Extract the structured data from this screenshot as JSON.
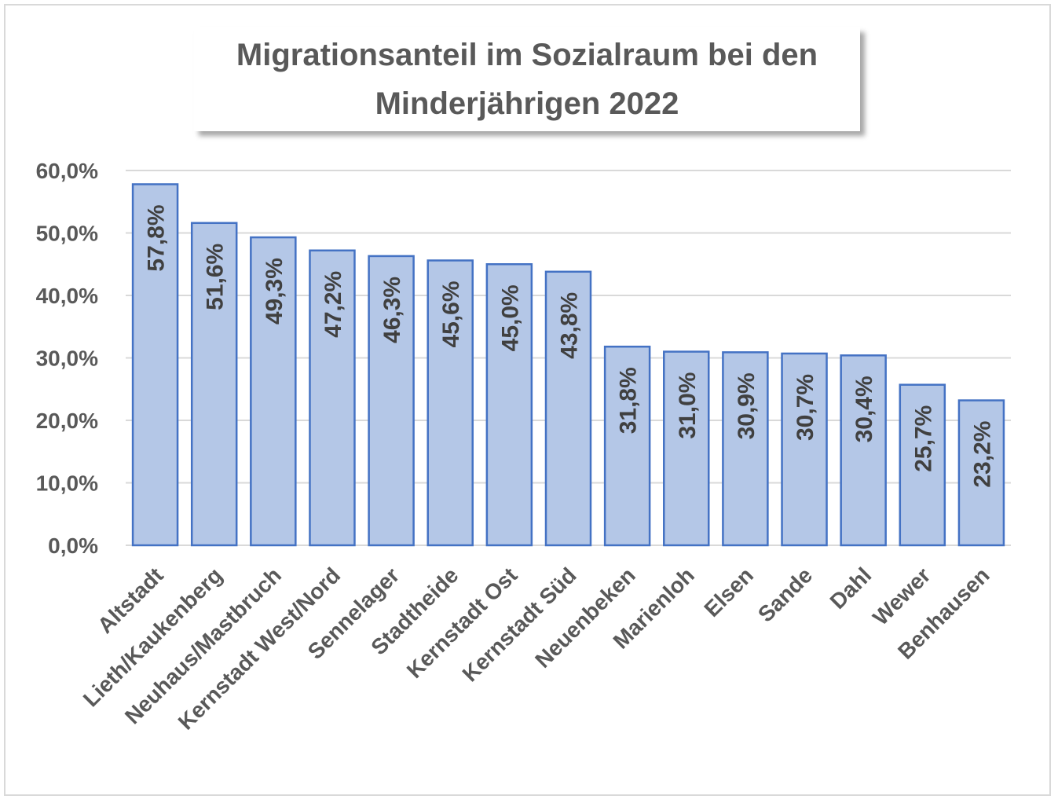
{
  "chart_data": {
    "type": "bar",
    "title": "Migrationsanteil im Sozialraum bei den Minderjährigen 2022",
    "categories": [
      "Altstadt",
      "Lieth/Kaukenberg",
      "Neuhaus/Mastbruch",
      "Kernstadt West/Nord",
      "Sennelager",
      "Stadtheide",
      "Kernstadt Ost",
      "Kernstadt Süd",
      "Neuenbeken",
      "Marienloh",
      "Elsen",
      "Sande",
      "Dahl",
      "Wewer",
      "Benhausen"
    ],
    "values": [
      57.8,
      51.6,
      49.3,
      47.2,
      46.3,
      45.6,
      45.0,
      43.8,
      31.8,
      31.0,
      30.9,
      30.7,
      30.4,
      25.7,
      23.2
    ],
    "data_labels": [
      "57,8%",
      "51,6%",
      "49,3%",
      "47,2%",
      "46,3%",
      "45,6%",
      "45,0%",
      "43,8%",
      "31,8%",
      "31,0%",
      "30,9%",
      "30,7%",
      "30,4%",
      "25,7%",
      "23,2%"
    ],
    "yticks": [
      0,
      10,
      20,
      30,
      40,
      50,
      60
    ],
    "ytick_labels": [
      "0,0%",
      "10,0%",
      "20,0%",
      "30,0%",
      "40,0%",
      "50,0%",
      "60,0%"
    ],
    "ylim": [
      0,
      60
    ],
    "xlabel": "",
    "ylabel": "",
    "grid": true,
    "legend": "none",
    "colors": {
      "bar_fill": "#b4c7e7",
      "bar_stroke": "#4472c4",
      "grid": "#d9d9d9",
      "text": "#595959"
    }
  }
}
